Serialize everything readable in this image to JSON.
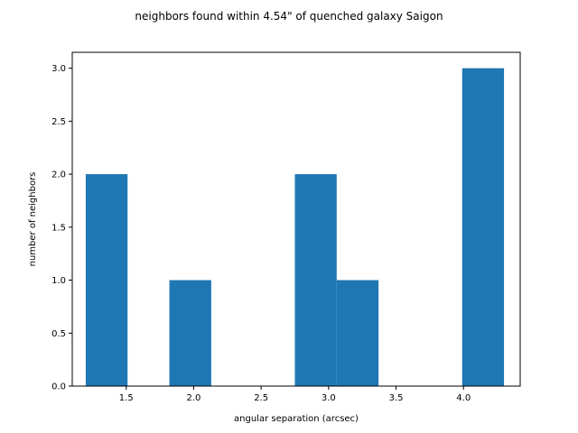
{
  "chart_data": {
    "type": "bar",
    "title": "neighbors found within 4.54\" of quenched galaxy Saigon",
    "xlabel": "angular separation (arcsec)",
    "ylabel": "number of neighbors",
    "xlim": [
      1.1,
      4.42
    ],
    "ylim": [
      0,
      3.15
    ],
    "xticks": [
      "1.5",
      "2.0",
      "2.5",
      "3.0",
      "3.5",
      "4.0"
    ],
    "yticks": [
      "0.0",
      "0.5",
      "1.0",
      "1.5",
      "2.0",
      "2.5",
      "3.0"
    ],
    "bins": [
      {
        "x0": 1.2,
        "x1": 1.51,
        "value": 2
      },
      {
        "x0": 1.51,
        "x1": 1.82,
        "value": 0
      },
      {
        "x0": 1.82,
        "x1": 2.13,
        "value": 1
      },
      {
        "x0": 2.13,
        "x1": 2.44,
        "value": 0
      },
      {
        "x0": 2.44,
        "x1": 2.75,
        "value": 0
      },
      {
        "x0": 2.75,
        "x1": 3.06,
        "value": 2
      },
      {
        "x0": 3.06,
        "x1": 3.37,
        "value": 1
      },
      {
        "x0": 3.37,
        "x1": 3.68,
        "value": 0
      },
      {
        "x0": 3.68,
        "x1": 3.99,
        "value": 0
      },
      {
        "x0": 3.99,
        "x1": 4.3,
        "value": 3
      }
    ],
    "bar_color": "#1f77b4",
    "grid": false,
    "legend": "none"
  }
}
